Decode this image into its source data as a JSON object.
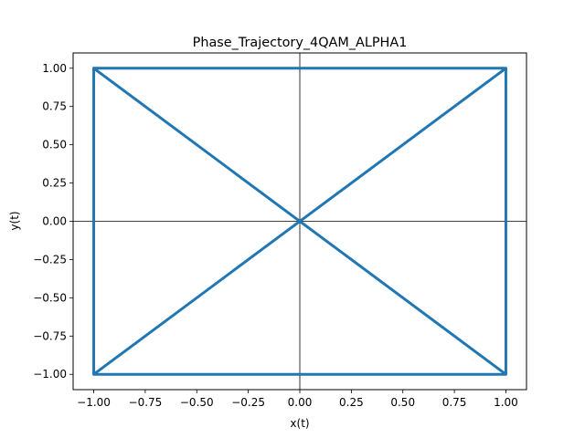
{
  "chart_data": {
    "type": "line",
    "title": "Phase_Trajectory_4QAM_ALPHA1",
    "xlabel": "x(t)",
    "ylabel": "y(t)",
    "xlim": [
      -1.1,
      1.1
    ],
    "ylim": [
      -1.1,
      1.1
    ],
    "xticks": [
      -1.0,
      -0.75,
      -0.5,
      -0.25,
      0.0,
      0.25,
      0.5,
      0.75,
      1.0
    ],
    "yticks": [
      -1.0,
      -0.75,
      -0.5,
      -0.25,
      0.0,
      0.25,
      0.5,
      0.75,
      1.0
    ],
    "xtick_labels": [
      "−1.00",
      "−0.75",
      "−0.50",
      "−0.25",
      "0.00",
      "0.25",
      "0.50",
      "0.75",
      "1.00"
    ],
    "ytick_labels": [
      "−1.00",
      "−0.75",
      "−0.50",
      "−0.25",
      "0.00",
      "0.25",
      "0.50",
      "0.75",
      "1.00"
    ],
    "grid": false,
    "reference_lines": [
      {
        "orientation": "vertical",
        "x": 0
      },
      {
        "orientation": "horizontal",
        "y": 0
      }
    ],
    "series": [
      {
        "color": "#1f77b4",
        "x": [
          -1,
          1,
          1,
          -1,
          1,
          -1,
          -1,
          1,
          -1
        ],
        "y": [
          1,
          1,
          -1,
          -1,
          1,
          1,
          -1,
          -1,
          1
        ]
      }
    ]
  }
}
